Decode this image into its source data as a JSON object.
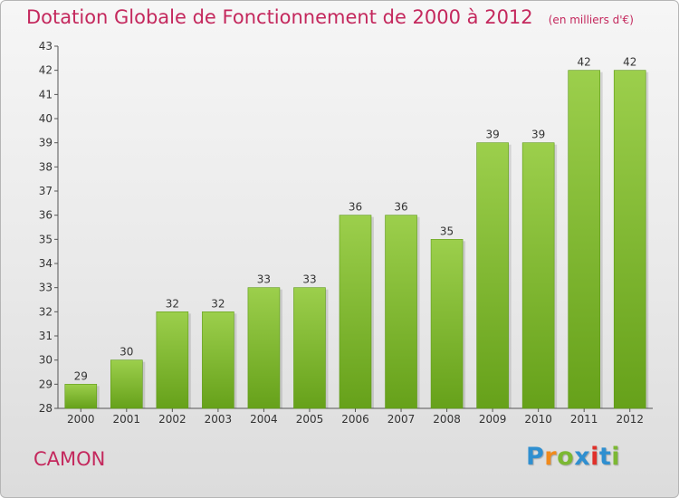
{
  "chart_data": {
    "type": "bar",
    "title": "Dotation Globale de Fonctionnement de 2000 à 2012",
    "unit_note": "(en milliers d'€)",
    "xlabel": "",
    "ylabel": "",
    "categories": [
      "2000",
      "2001",
      "2002",
      "2003",
      "2004",
      "2005",
      "2006",
      "2007",
      "2008",
      "2009",
      "2010",
      "2011",
      "2012"
    ],
    "values": [
      29,
      30,
      32,
      32,
      33,
      33,
      36,
      36,
      35,
      39,
      39,
      42,
      42
    ],
    "ylim": [
      28,
      43
    ],
    "yticks": [
      28,
      29,
      30,
      31,
      32,
      33,
      34,
      35,
      36,
      37,
      38,
      39,
      40,
      41,
      42,
      43
    ],
    "grid": false,
    "bar_color": "#8cc43c",
    "bar_color_dark": "#6aa51e"
  },
  "commune": "CAMON",
  "brand": {
    "letters": [
      "P",
      "r",
      "o",
      "x",
      "i",
      "t",
      "i"
    ],
    "colors": [
      "#2f8fd0",
      "#f08a1c",
      "#7cb833",
      "#2f8fd0",
      "#e0302a",
      "#2f8fd0",
      "#7cb833"
    ]
  },
  "colors": {
    "title": "#c4285d",
    "axis": "#555555",
    "text": "#333333"
  }
}
